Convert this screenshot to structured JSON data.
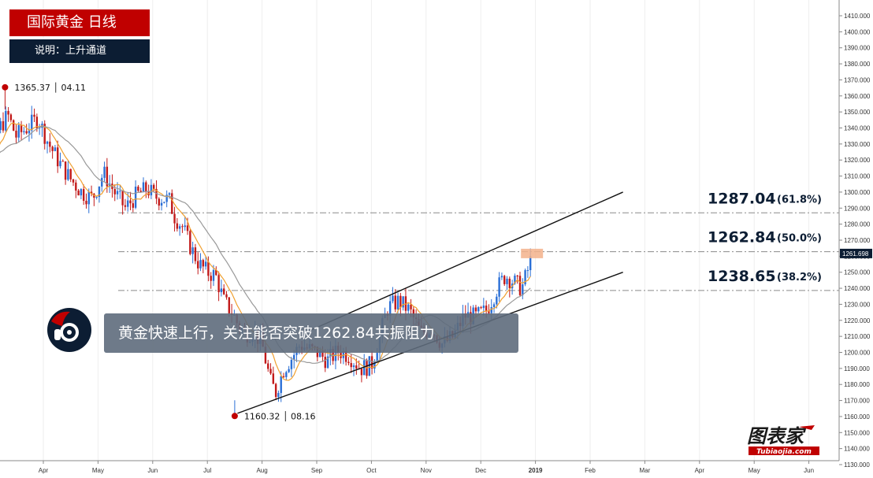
{
  "header": {
    "title": "国际黄金  日线",
    "subtitle": "说明：上升通道"
  },
  "annotation": {
    "text": "黄金快速上行，关注能否突破1262.84共振阻力"
  },
  "watermark": {
    "brand": "图表家",
    "url": "Tubiaojia.com"
  },
  "colors": {
    "bull": "#2a6fd6",
    "bear": "#c21a1a",
    "ma_fast": "#f0a030",
    "ma_slow": "#999999",
    "header_red": "#c00000",
    "header_navy": "#0c1d33",
    "price_tag": "#0c1d33",
    "highlight": "#f3b28b"
  },
  "chart_data": {
    "type": "candlestick",
    "x_ticks": [
      "Apr",
      "May",
      "Jun",
      "Jul",
      "Aug",
      "Sep",
      "Oct",
      "Nov",
      "Dec",
      "2019",
      "Feb",
      "Mar",
      "Apr",
      "May",
      "Jun"
    ],
    "y_range": [
      1130,
      1410
    ],
    "y_ticks": [
      1130,
      1140,
      1150,
      1160,
      1170,
      1180,
      1190,
      1200,
      1210,
      1220,
      1230,
      1240,
      1250,
      1260,
      1270,
      1280,
      1290,
      1300,
      1310,
      1320,
      1330,
      1340,
      1350,
      1360,
      1370,
      1380,
      1390,
      1400,
      1410
    ],
    "y_tick_labels": [
      "1130.000",
      "1140.000",
      "1150.000",
      "1160.000",
      "1170.000",
      "1180.000",
      "1190.000",
      "1200.000",
      "1210.000",
      "1220.000",
      "1230.000",
      "1240.000",
      "1250.000",
      "1260.000",
      "1270.000",
      "1280.000",
      "1290.000",
      "1300.000",
      "1310.000",
      "1320.000",
      "1330.000",
      "1340.000",
      "1350.000",
      "1360.000",
      "1370.000",
      "1380.000",
      "1390.000",
      "1400.000",
      "1410.000"
    ],
    "current_price": "1261.698",
    "current_price_value": 1261.698,
    "swing_high": {
      "label": "1365.37 │ 04.11",
      "value": 1365.37,
      "month": 3.3
    },
    "swing_low": {
      "label": "1160.32 │ 08.16",
      "value": 1160.32,
      "month": 7.5
    },
    "fib_levels": [
      {
        "price": "1287.04",
        "pct": "(61.8%)",
        "value": 1287.04
      },
      {
        "price": "1262.84",
        "pct": "(50.0%)",
        "value": 1262.84
      },
      {
        "price": "1238.65",
        "pct": "(38.2%)",
        "value": 1238.65
      }
    ],
    "channel": {
      "upper": {
        "from": [
          8.9,
          1214
        ],
        "to": [
          14.6,
          1300
        ]
      },
      "lower": {
        "from": [
          7.55,
          1162
        ],
        "to": [
          14.6,
          1250
        ]
      }
    },
    "price_path": [
      [
        2.6,
        1322
      ],
      [
        2.8,
        1316
      ],
      [
        3.0,
        1328
      ],
      [
        3.2,
        1340
      ],
      [
        3.35,
        1348
      ],
      [
        3.5,
        1335
      ],
      [
        3.7,
        1340
      ],
      [
        3.9,
        1346
      ],
      [
        4.1,
        1330
      ],
      [
        4.3,
        1318
      ],
      [
        4.5,
        1308
      ],
      [
        4.7,
        1300
      ],
      [
        4.9,
        1296
      ],
      [
        5.1,
        1312
      ],
      [
        5.3,
        1300
      ],
      [
        5.5,
        1290
      ],
      [
        5.7,
        1298
      ],
      [
        5.9,
        1302
      ],
      [
        6.05,
        1297
      ],
      [
        6.2,
        1296
      ],
      [
        6.3,
        1295
      ],
      [
        6.4,
        1285
      ],
      [
        6.55,
        1278
      ],
      [
        6.7,
        1265
      ],
      [
        6.85,
        1255
      ],
      [
        7.0,
        1250
      ],
      [
        7.15,
        1248
      ],
      [
        7.3,
        1232
      ],
      [
        7.45,
        1225
      ],
      [
        7.55,
        1218
      ],
      [
        7.7,
        1212
      ],
      [
        7.85,
        1213
      ],
      [
        8.0,
        1205
      ],
      [
        8.15,
        1182
      ],
      [
        8.25,
        1175
      ],
      [
        8.4,
        1190
      ],
      [
        8.55,
        1197
      ],
      [
        8.7,
        1205
      ],
      [
        8.85,
        1202
      ],
      [
        9.0,
        1200
      ],
      [
        9.2,
        1195
      ],
      [
        9.4,
        1201
      ],
      [
        9.6,
        1198
      ],
      [
        9.8,
        1190
      ],
      [
        10.0,
        1192
      ],
      [
        10.15,
        1210
      ],
      [
        10.3,
        1228
      ],
      [
        10.5,
        1232
      ],
      [
        10.7,
        1226
      ],
      [
        10.9,
        1212
      ],
      [
        11.1,
        1215
      ],
      [
        11.3,
        1205
      ],
      [
        11.5,
        1210
      ],
      [
        11.7,
        1223
      ],
      [
        11.9,
        1222
      ],
      [
        12.1,
        1226
      ],
      [
        12.3,
        1240
      ],
      [
        12.45,
        1248
      ],
      [
        12.6,
        1244
      ],
      [
        12.75,
        1240
      ],
      [
        12.85,
        1250
      ],
      [
        12.95,
        1262
      ]
    ]
  }
}
